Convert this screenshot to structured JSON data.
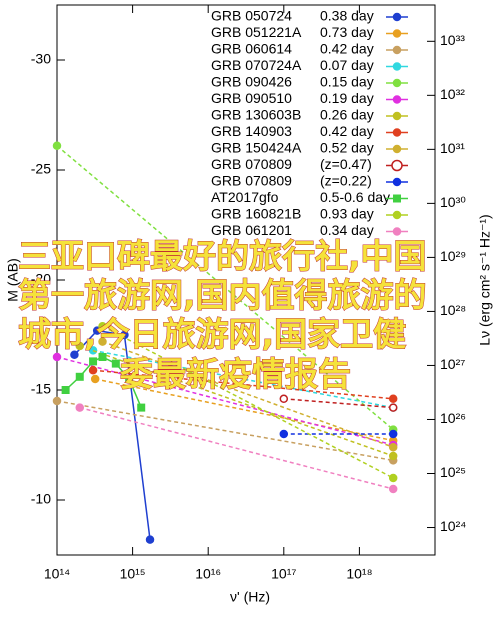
{
  "chart_data": {
    "type": "line",
    "xlabel": "ν' (Hz)",
    "ylabel": "M (AB)",
    "y2label": "Lν (erg cm² s⁻¹ Hz⁻¹)",
    "xscale": "log",
    "y2scale": "log",
    "xlim": [
      100000000000000.0,
      1e+19
    ],
    "ylim": [
      -7.5,
      -32.5
    ],
    "y2lim": [
      3.1e+23,
      4.7e+33
    ],
    "xticks": [
      {
        "value": 100000000000000.0,
        "label": "10¹⁴"
      },
      {
        "value": 1000000000000000.0,
        "label": "10¹⁵"
      },
      {
        "value": 1e+16,
        "label": "10¹⁶"
      },
      {
        "value": 1e+17,
        "label": "10¹⁷"
      },
      {
        "value": 1e+18,
        "label": "10¹⁸"
      }
    ],
    "yticks": [
      -30,
      -25,
      -20,
      -15,
      -10
    ],
    "y2ticks": [
      {
        "value": 1e+24,
        "label": "10²⁴"
      },
      {
        "value": 1e+25,
        "label": "10²⁵"
      },
      {
        "value": 1e+26,
        "label": "10²⁶"
      },
      {
        "value": 1e+27,
        "label": "10²⁷"
      },
      {
        "value": 1e+28,
        "label": "10²⁸"
      },
      {
        "value": 1e+29,
        "label": "10²⁹"
      },
      {
        "value": 1e+30,
        "label": "10³⁰"
      },
      {
        "value": 1e+31,
        "label": "10³¹"
      },
      {
        "value": 1e+32,
        "label": "10³²"
      },
      {
        "value": 1e+33,
        "label": "10³³"
      }
    ],
    "legend": "upper right",
    "annotations": [
      "三亚口碑最好的旅行社,中国",
      "第一旅游网,国内值得旅游的",
      "城市,今日旅游网,国家卫健",
      "委最新疫情报告"
    ],
    "series": [
      {
        "name": "GRB 050724",
        "label": "0.38 day",
        "color": "#1f3fd0",
        "marker": "circle",
        "dash": false,
        "x": [
          170000000000000.0,
          340000000000000.0,
          780000000000000.0,
          1700000000000000.0
        ],
        "values": [
          -16.6,
          -17.7,
          -17.5,
          -8.2
        ]
      },
      {
        "name": "GRB 051221A",
        "label": "0.73 day",
        "color": "#e8a020",
        "marker": "circle",
        "dash": true,
        "x": [
          320000000000000.0,
          2.8e+18
        ],
        "values": [
          -15.5,
          -12.7
        ]
      },
      {
        "name": "GRB 060614",
        "label": "0.42 day",
        "color": "#c8a060",
        "marker": "circle",
        "dash": true,
        "x": [
          100000000000000.0,
          2.8e+18
        ],
        "values": [
          -14.5,
          -11.8
        ]
      },
      {
        "name": "GRB 070724A",
        "label": "0.07 day",
        "color": "#30d8e0",
        "marker": "circle",
        "dash": true,
        "x": [
          300000000000000.0,
          2.8e+18
        ],
        "values": [
          -16.8,
          -14.2
        ]
      },
      {
        "name": "GRB 090426",
        "label": "0.15 day",
        "color": "#80e040",
        "marker": "circle",
        "dash": true,
        "x": [
          100000000000000.0,
          2.8e+18
        ],
        "values": [
          -26.1,
          -13.2
        ]
      },
      {
        "name": "GRB 090510",
        "label": "0.19 day",
        "color": "#e030e0",
        "marker": "circle",
        "dash": true,
        "x": [
          100000000000000.0,
          2.8e+18
        ],
        "values": [
          -16.5,
          -12.5
        ]
      },
      {
        "name": "GRB 130603B",
        "label": "0.26 day",
        "color": "#c0c020",
        "marker": "circle",
        "dash": true,
        "x": [
          200000000000000.0,
          2.8e+18
        ],
        "values": [
          -17.0,
          -12.0
        ]
      },
      {
        "name": "GRB 140903",
        "label": "0.42 day",
        "color": "#e04020",
        "marker": "circle",
        "dash": true,
        "x": [
          300000000000000.0,
          2.8e+18
        ],
        "values": [
          -15.9,
          -14.6
        ]
      },
      {
        "name": "GRB 150424A",
        "label": "0.52 day",
        "color": "#d0b030",
        "marker": "circle",
        "dash": true,
        "x": [
          400000000000000.0,
          2.8e+18
        ],
        "values": [
          -17.2,
          -12.4
        ]
      },
      {
        "name": "GRB 070809",
        "label": "(z=0.47)",
        "color": "#c02020",
        "marker": "open-circle",
        "dash": true,
        "x": [
          1e+17,
          2.8e+18
        ],
        "values": [
          -14.6,
          -14.2
        ]
      },
      {
        "name": "GRB 070809",
        "label": "(z=0.22)",
        "color": "#1030e0",
        "marker": "circle",
        "dash": true,
        "x": [
          1e+17,
          2.8e+18
        ],
        "values": [
          -13.0,
          -13.0
        ]
      },
      {
        "name": "AT2017gfo",
        "label": "0.5-0.6 day",
        "color": "#40d040",
        "marker": "square",
        "dash": false,
        "x": [
          130000000000000.0,
          200000000000000.0,
          300000000000000.0,
          400000000000000.0,
          600000000000000.0,
          900000000000000.0,
          1300000000000000.0
        ],
        "values": [
          -15.0,
          -15.6,
          -16.3,
          -16.5,
          -16.2,
          -15.5,
          -14.2
        ]
      },
      {
        "name": "GRB 160821B",
        "label": "0.93 day",
        "color": "#b0d020",
        "marker": "circle",
        "dash": true,
        "x": [
          400000000000000.0,
          2.8e+18
        ],
        "values": [
          -17.9,
          -11.0
        ]
      },
      {
        "name": "GRB 061201",
        "label": "0.34 day",
        "color": "#f080c0",
        "marker": "circle",
        "dash": true,
        "x": [
          200000000000000.0,
          2.8e+18
        ],
        "values": [
          -14.2,
          -10.5
        ]
      }
    ]
  }
}
